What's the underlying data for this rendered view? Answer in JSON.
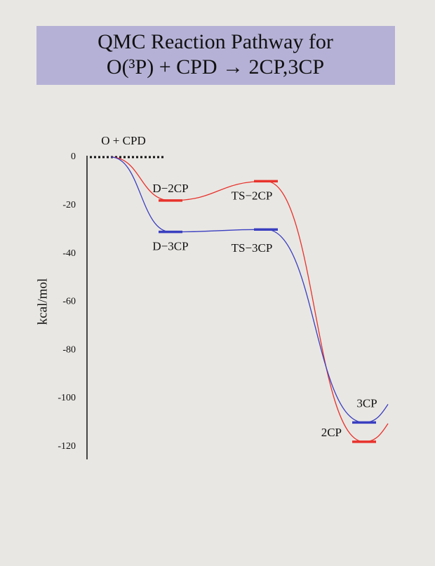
{
  "chart_data": {
    "type": "energy-diagram",
    "title": [
      "QMC Reaction Pathway for",
      "O(³P) + CPD  →  2CP,3CP"
    ],
    "ylabel": "kcal/mol",
    "ylim": [
      -125,
      0
    ],
    "yticks": [
      0,
      -20,
      -40,
      -60,
      -80,
      -100,
      -120
    ],
    "grid": false,
    "reactant": {
      "label": "O + CPD",
      "value": 0
    },
    "series": [
      {
        "color": "#e8322c",
        "labels": [
          "D−2CP",
          "TS−2CP",
          "2CP"
        ],
        "values": [
          -18,
          -10,
          -118
        ]
      },
      {
        "color": "#3a3fc0",
        "labels": [
          "D−3CP",
          "TS−3CP",
          "3CP"
        ],
        "values": [
          -31,
          -30,
          -110
        ]
      }
    ]
  }
}
